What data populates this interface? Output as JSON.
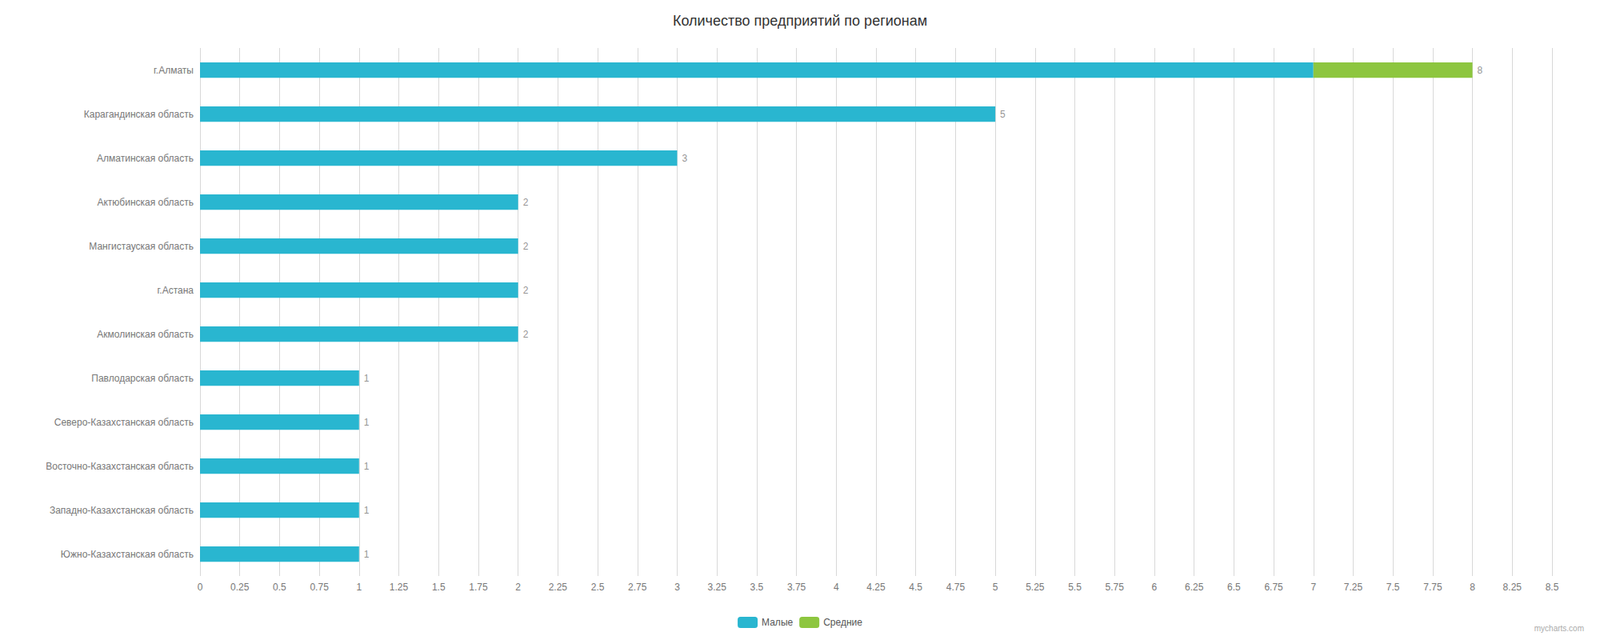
{
  "chart_data": {
    "type": "bar",
    "orientation": "horizontal",
    "stacked": true,
    "title": "Количество предприятий по регионам",
    "categories": [
      "Южно-Казахстанская область",
      "Западно-Казахстанская область",
      "Восточно-Казахстанская область",
      "Северо-Казахстанская область",
      "Павлодарская область",
      "Акмолинская область",
      "г.Астана",
      "Мангистауская область",
      "Актюбинская область",
      "Алматинская область",
      "Карагандинская область",
      "г.Алматы"
    ],
    "series": [
      {
        "name": "Малые",
        "color": "#29b6d0",
        "values": [
          1,
          1,
          1,
          1,
          1,
          2,
          2,
          2,
          2,
          3,
          5,
          7
        ]
      },
      {
        "name": "Средние",
        "color": "#8dc63f",
        "values": [
          0,
          0,
          0,
          0,
          0,
          0,
          0,
          0,
          0,
          0,
          0,
          1
        ]
      }
    ],
    "totals": [
      1,
      1,
      1,
      1,
      1,
      2,
      2,
      2,
      2,
      3,
      5,
      8
    ],
    "xlim": [
      0,
      8.5
    ],
    "xticks": [
      0,
      0.25,
      0.5,
      0.75,
      1,
      1.25,
      1.5,
      1.75,
      2,
      2.25,
      2.5,
      2.75,
      3,
      3.25,
      3.5,
      3.75,
      4,
      4.25,
      4.5,
      4.75,
      5,
      5.25,
      5.5,
      5.75,
      6,
      6.25,
      6.5,
      6.75,
      7,
      7.25,
      7.5,
      7.75,
      8,
      8.25,
      8.5
    ],
    "grid": true,
    "legend": "bottom",
    "watermark": "mycharts.com"
  }
}
